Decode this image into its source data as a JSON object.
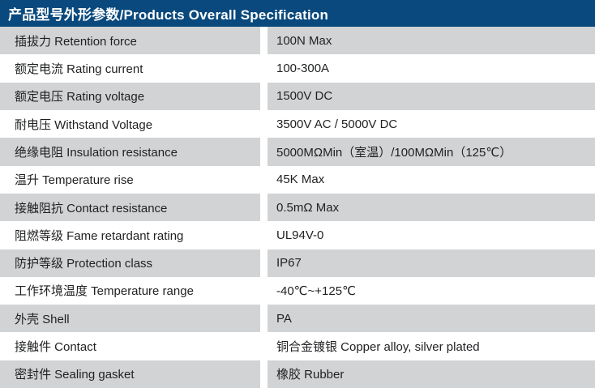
{
  "header": {
    "title": "产品型号外形参数/Products Overall Specification"
  },
  "colors": {
    "header_bg": "#09497d",
    "header_text": "#ffffff",
    "row_alt_bg": "#d2d3d4",
    "row_bg": "#ffffff",
    "body_text": "#1f2022"
  },
  "table": {
    "rows": [
      {
        "label": "插拔力 Retention force",
        "value": "100N Max"
      },
      {
        "label": "额定电流 Rating current",
        "value": "100-300A"
      },
      {
        "label": "额定电压 Rating voltage",
        "value": "1500V DC"
      },
      {
        "label": "耐电压  Withstand Voltage",
        "value": "3500V AC / 5000V DC"
      },
      {
        "label": "绝缘电阻 Insulation resistance",
        "value": "5000MΩMin（室温）/100MΩMin（125℃）"
      },
      {
        "label": "温升 Temperature rise",
        "value": "45K Max"
      },
      {
        "label": "接触阻抗 Contact resistance",
        "value": "0.5mΩ Max"
      },
      {
        "label": "阻燃等级 Fame retardant rating",
        "value": "UL94V-0"
      },
      {
        "label": "防护等级 Protection class",
        "value": "IP67"
      },
      {
        "label": "工作环境温度 Temperature range",
        "value": "-40℃~+125℃"
      },
      {
        "label": "外壳 Shell",
        "value": "PA"
      },
      {
        "label": "接触件 Contact",
        "value": "铜合金镀银 Copper alloy, silver plated"
      },
      {
        "label": "密封件 Sealing gasket",
        "value": "橡胶 Rubber"
      }
    ]
  }
}
